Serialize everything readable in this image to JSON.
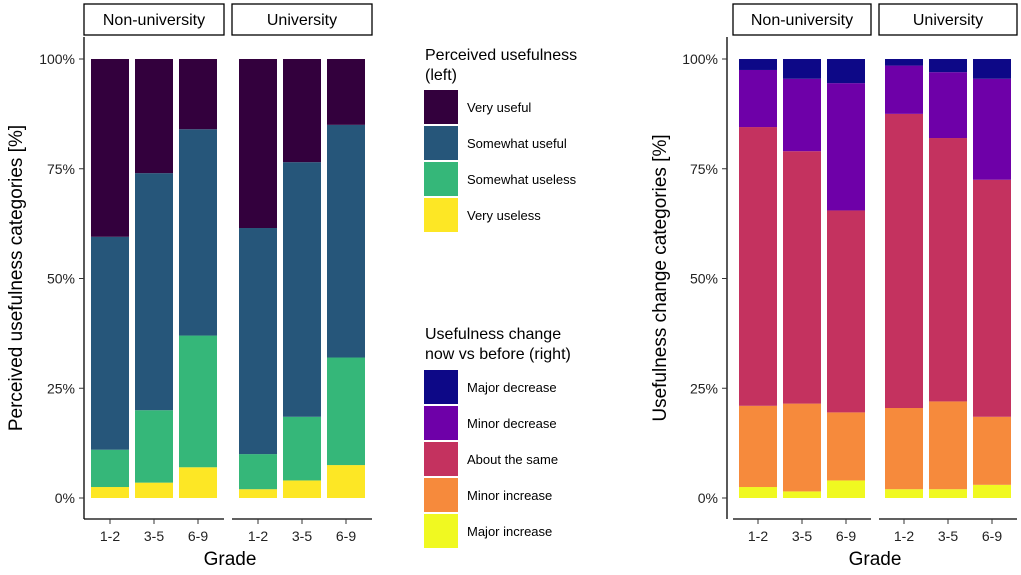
{
  "chart_data": [
    {
      "type": "bar",
      "stacked": true,
      "panel": "left",
      "ylabel": "Perceived usefulness categories [%]",
      "xlabel": "Grade",
      "ylim": [
        0,
        100
      ],
      "yticks": [
        "0%",
        "25%",
        "50%",
        "75%",
        "100%"
      ],
      "facets": [
        "Non-university",
        "University"
      ],
      "categories": [
        "1-2",
        "3-5",
        "6-9"
      ],
      "legend": {
        "title": "Perceived usefulness (left)",
        "title_lines": [
          "Perceived usefulness",
          "(left)"
        ],
        "placement": "right",
        "items": [
          "Very useful",
          "Somewhat useful",
          "Somewhat useless",
          "Very useless"
        ]
      },
      "series": [
        {
          "name": "Very useless",
          "color": "#fde725",
          "values": {
            "Non-university": [
              2.5,
              3.5,
              7.0
            ],
            "University": [
              2.0,
              4.0,
              7.5
            ]
          }
        },
        {
          "name": "Somewhat useless",
          "color": "#35b779",
          "values": {
            "Non-university": [
              8.5,
              16.5,
              30.0
            ],
            "University": [
              8.0,
              14.5,
              24.5
            ]
          }
        },
        {
          "name": "Somewhat useful",
          "color": "#26567a",
          "values": {
            "Non-university": [
              48.5,
              54.0,
              47.0
            ],
            "University": [
              51.5,
              58.0,
              53.0
            ]
          }
        },
        {
          "name": "Very useful",
          "color": "#33003d",
          "values": {
            "Non-university": [
              40.5,
              26.0,
              16.0
            ],
            "University": [
              38.5,
              23.5,
              15.0
            ]
          }
        }
      ]
    },
    {
      "type": "bar",
      "stacked": true,
      "panel": "right",
      "ylabel": "Usefulness change categories [%]",
      "xlabel": "Grade",
      "ylim": [
        0,
        100
      ],
      "yticks": [
        "0%",
        "25%",
        "50%",
        "75%",
        "100%"
      ],
      "facets": [
        "Non-university",
        "University"
      ],
      "categories": [
        "1-2",
        "3-5",
        "6-9"
      ],
      "legend": {
        "title": "Usefulness change now vs before (right)",
        "title_lines": [
          "Usefulness change",
          "now vs before (right)"
        ],
        "placement": "right",
        "items": [
          "Major decrease",
          "Minor decrease",
          "About the same",
          "Minor increase",
          "Major increase"
        ]
      },
      "series": [
        {
          "name": "Major increase",
          "color": "#f0f921",
          "values": {
            "Non-university": [
              2.5,
              1.5,
              4.0
            ],
            "University": [
              2.0,
              2.0,
              3.0
            ]
          }
        },
        {
          "name": "Minor increase",
          "color": "#f68a3c",
          "values": {
            "Non-university": [
              18.5,
              20.0,
              15.5
            ],
            "University": [
              18.5,
              20.0,
              15.5
            ]
          }
        },
        {
          "name": "About the same",
          "color": "#c4325f",
          "values": {
            "Non-university": [
              63.5,
              57.5,
              46.0
            ],
            "University": [
              67.0,
              60.0,
              54.0
            ]
          }
        },
        {
          "name": "Minor decrease",
          "color": "#6e00a8",
          "values": {
            "Non-university": [
              13.0,
              16.5,
              29.0
            ],
            "University": [
              11.0,
              15.0,
              23.0
            ]
          }
        },
        {
          "name": "Major decrease",
          "color": "#0d0887",
          "values": {
            "Non-university": [
              2.5,
              4.5,
              5.5
            ],
            "University": [
              1.5,
              3.0,
              4.5
            ]
          }
        }
      ]
    }
  ]
}
